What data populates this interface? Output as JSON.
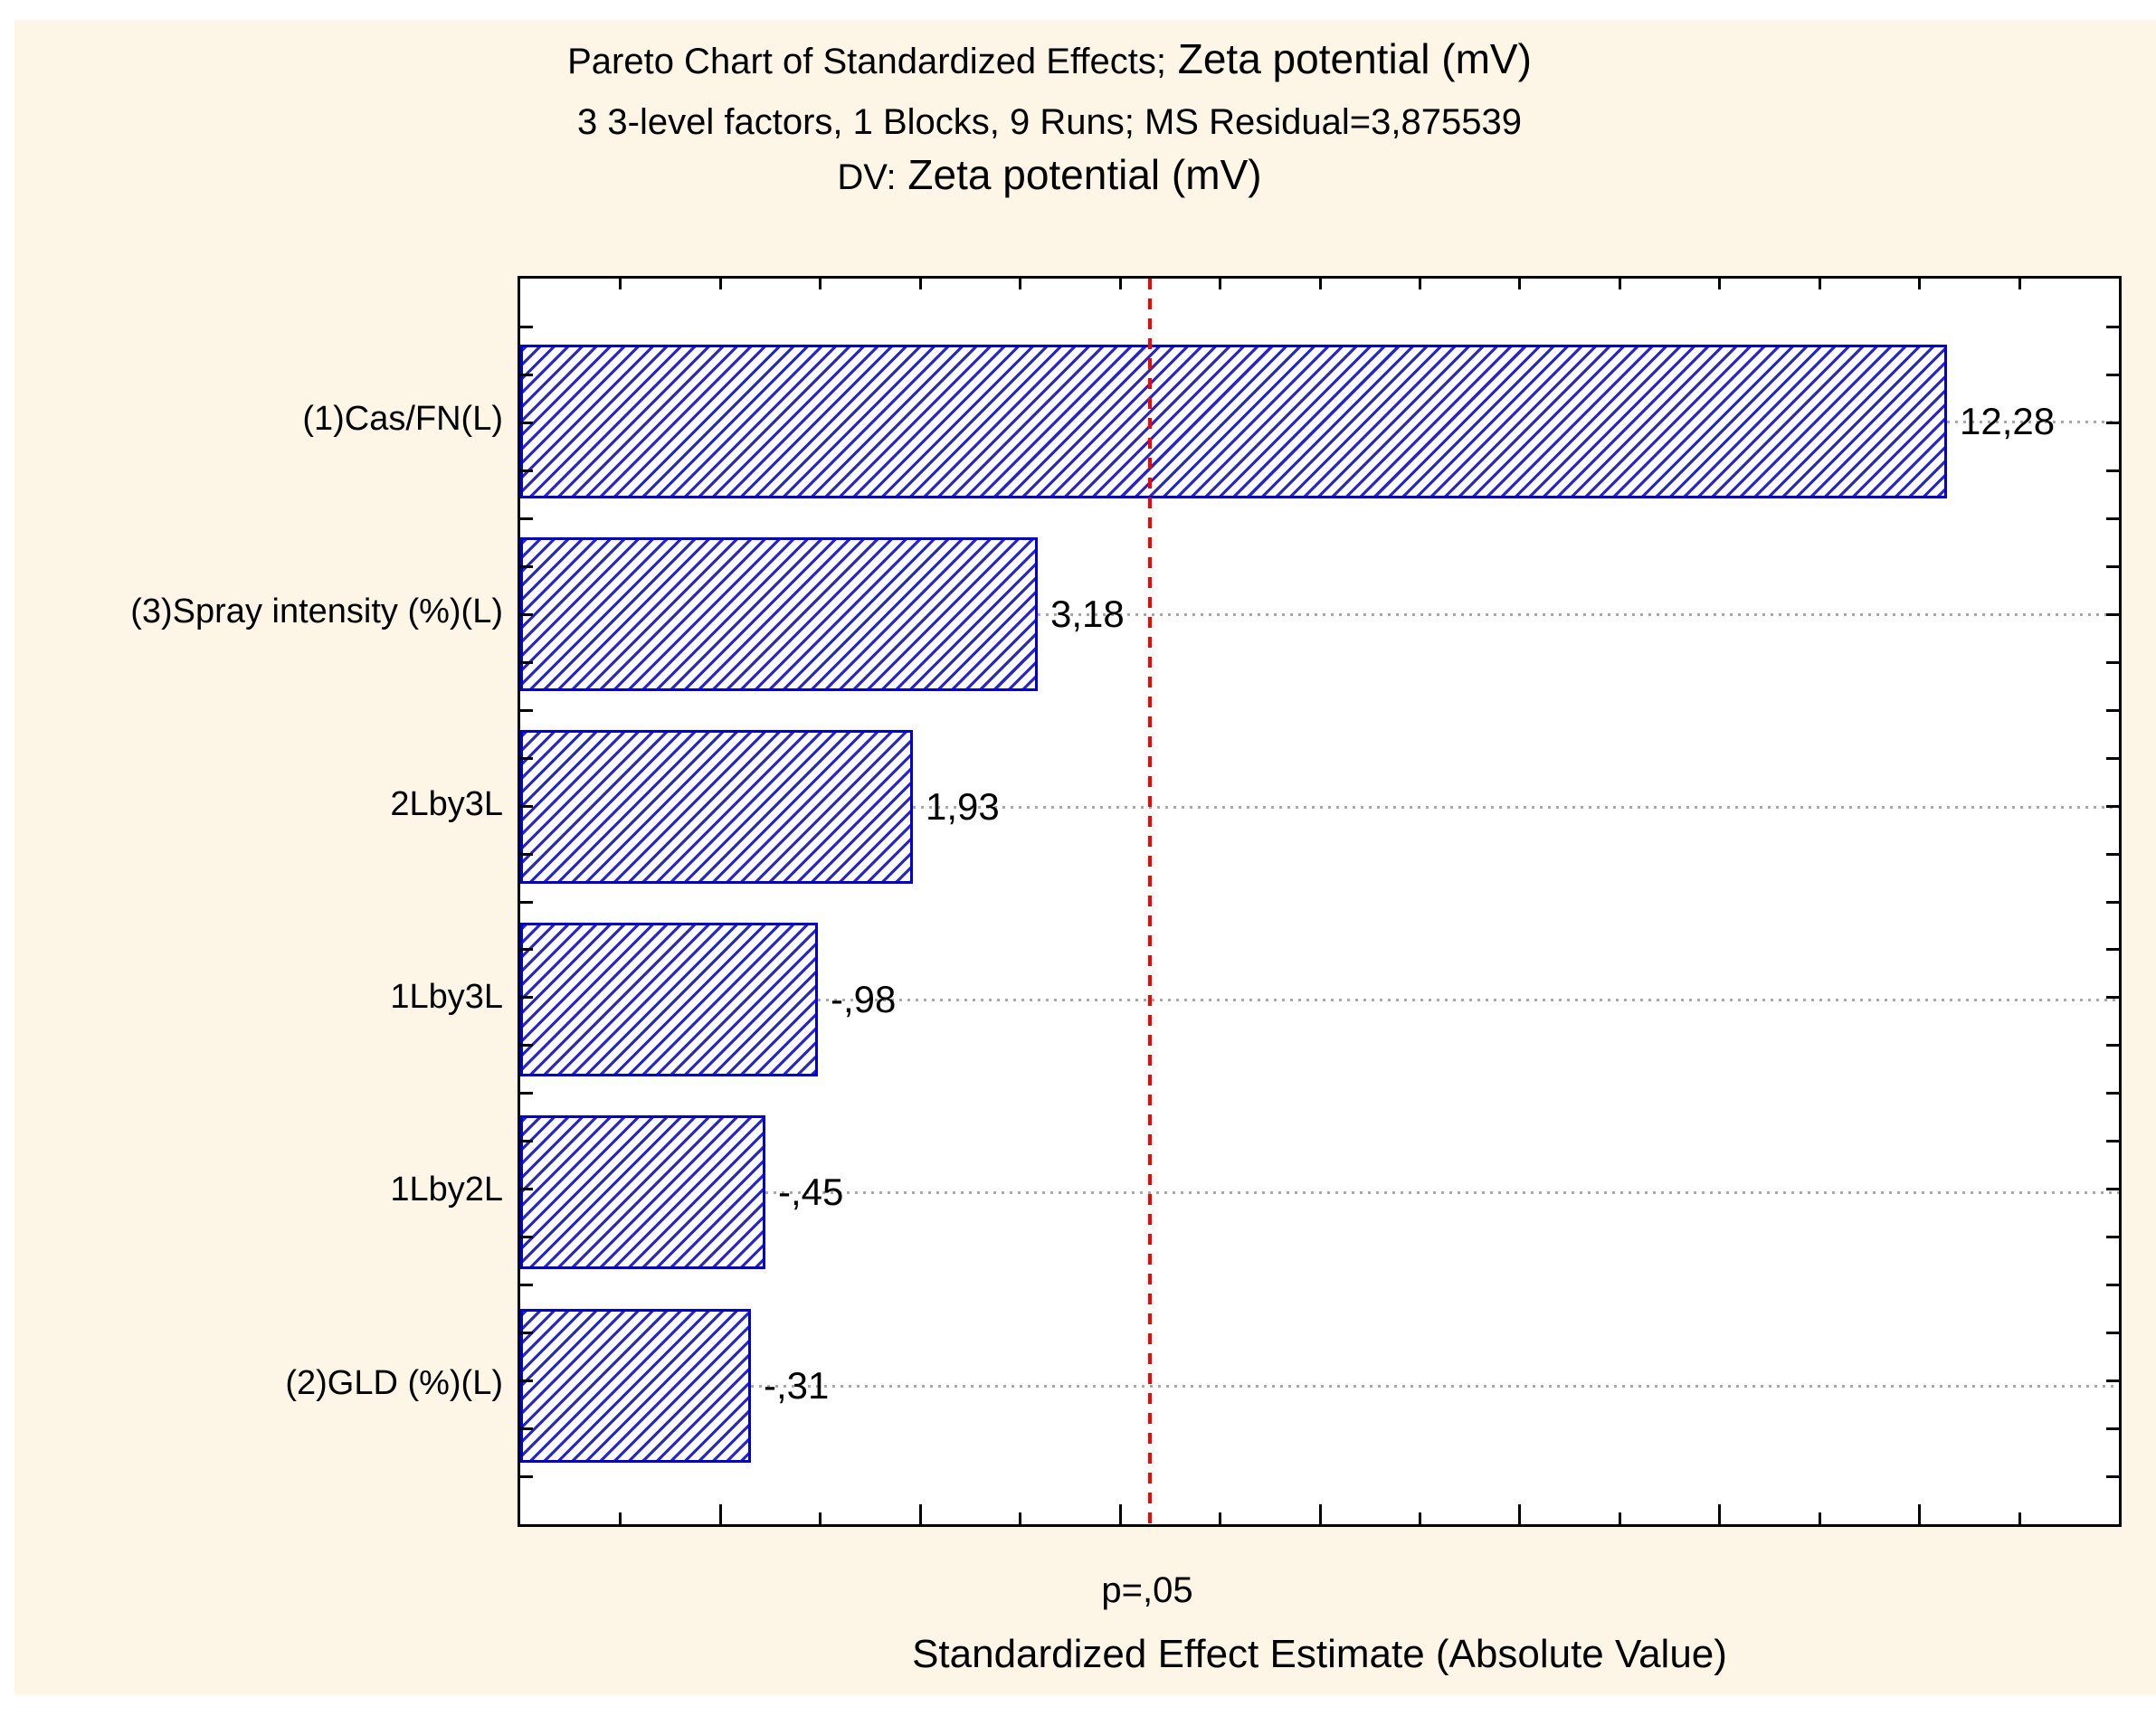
{
  "header": {
    "line1_prefix": "Pareto Chart of Standardized Effects;",
    "line1_var": " Zeta potential (mV)",
    "line2": "3 3-level factors, 1 Blocks, 9 Runs; MS Residual=3,875539",
    "line3_prefix": "DV:",
    "line3_var": " Zeta potential (mV)"
  },
  "chart_data": {
    "type": "bar",
    "orientation": "horizontal",
    "title": "Pareto Chart of Standardized Effects; Zeta potential (mV)",
    "subtitle": "3 3-level factors, 1 Blocks, 9 Runs; MS Residual=3,875539",
    "dv_line": "DV: Zeta potential (mV)",
    "xlabel": "Standardized Effect Estimate (Absolute Value)",
    "categories": [
      "(1)Cas/FN(L)",
      "(3)Spray intensity (%)(L)",
      "2Lby3L",
      "1Lby3L",
      "1Lby2L",
      "(2)GLD (%)(L)"
    ],
    "values": [
      12.28,
      3.18,
      1.93,
      -0.98,
      -0.45,
      -0.31
    ],
    "value_labels": [
      "12,28",
      "3,18",
      "1,93",
      "-,98",
      "-,45",
      "-,31"
    ],
    "xlim": [
      -2,
      14
    ],
    "x_tick_step_major": 2,
    "x_tick_step_minor": 1,
    "grid": "dotted horizontal line at each bar center",
    "legend_position": "none",
    "significance_line": {
      "value": 4.303,
      "label": "p=,05"
    },
    "colors": {
      "bar_hatch": "#2626d0",
      "bar_border": "#0000dd",
      "significance_line": "#ff0000",
      "gridline": "#a8a8a8",
      "background": "#fdf5e6",
      "plot_background": "#ffffff",
      "axis": "#000000"
    }
  }
}
